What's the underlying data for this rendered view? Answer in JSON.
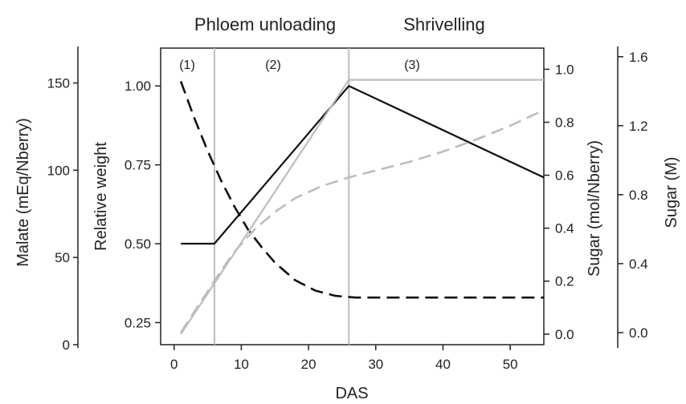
{
  "chart_data": {
    "type": "line",
    "title": "",
    "header_labels": [
      "Phloem unloading",
      "Shrivelling"
    ],
    "phase_labels": [
      "(1)",
      "(2)",
      "(3)"
    ],
    "phase_boundaries": [
      6,
      26
    ],
    "xlabel": "DAS",
    "xlim": [
      -2,
      55
    ],
    "x_ticks": [
      0,
      10,
      20,
      30,
      40,
      50
    ],
    "axes": {
      "relative_weight": {
        "label": "Relative weight",
        "lim": [
          0.18,
          1.12
        ],
        "ticks": [
          0.25,
          0.5,
          0.75,
          1.0
        ],
        "tick_labels": [
          "0.25",
          "0.50",
          "0.75",
          "1.00"
        ]
      },
      "malate": {
        "label": "Malate (mEq/Nberry)",
        "lim": [
          0,
          170
        ],
        "ticks": [
          0,
          50,
          100,
          150
        ],
        "tick_labels": [
          "0",
          "50",
          "100",
          "150"
        ]
      },
      "sugar_mol": {
        "label": "Sugar (mol/Nberry)",
        "lim": [
          -0.04,
          1.08
        ],
        "ticks": [
          0.0,
          0.2,
          0.4,
          0.6,
          0.8,
          1.0
        ],
        "tick_labels": [
          "0.0",
          "0.2",
          "0.4",
          "0.6",
          "0.8",
          "1.0"
        ]
      },
      "sugar_M": {
        "label": "Sugar (M)",
        "lim": [
          -0.07,
          1.65
        ],
        "ticks": [
          0.0,
          0.4,
          0.8,
          1.2,
          1.6
        ],
        "tick_labels": [
          "0.0",
          "0.4",
          "0.8",
          "1.2",
          "1.6"
        ]
      }
    },
    "series": [
      {
        "axis": "relative_weight",
        "color": "#111111",
        "dash": "solid",
        "x": [
          1,
          6,
          26,
          55
        ],
        "y": [
          0.5,
          0.5,
          1.0,
          0.71
        ]
      },
      {
        "axis": "malate",
        "color": "#111111",
        "dash": "dashed",
        "x": [
          1,
          3,
          5,
          7,
          9,
          11,
          13,
          15,
          18,
          21,
          24,
          27,
          35,
          45,
          55
        ],
        "y": [
          151,
          130,
          111,
          94,
          79,
          66,
          56,
          47,
          37,
          31,
          28,
          27,
          27,
          27,
          27
        ]
      },
      {
        "axis": "sugar_mol",
        "color": "#bdbdbd",
        "dash": "solid",
        "x": [
          1,
          26,
          55
        ],
        "y": [
          0.0,
          0.96,
          0.96
        ]
      },
      {
        "axis": "sugar_M",
        "color": "#bdbdbd",
        "dash": "dashed",
        "x": [
          1,
          3,
          5,
          7,
          9,
          12,
          15,
          18,
          22,
          26,
          30,
          35,
          40,
          45,
          50,
          55
        ],
        "y": [
          0.0,
          0.12,
          0.24,
          0.36,
          0.47,
          0.6,
          0.7,
          0.78,
          0.85,
          0.9,
          0.94,
          0.99,
          1.05,
          1.12,
          1.2,
          1.29
        ]
      }
    ]
  }
}
